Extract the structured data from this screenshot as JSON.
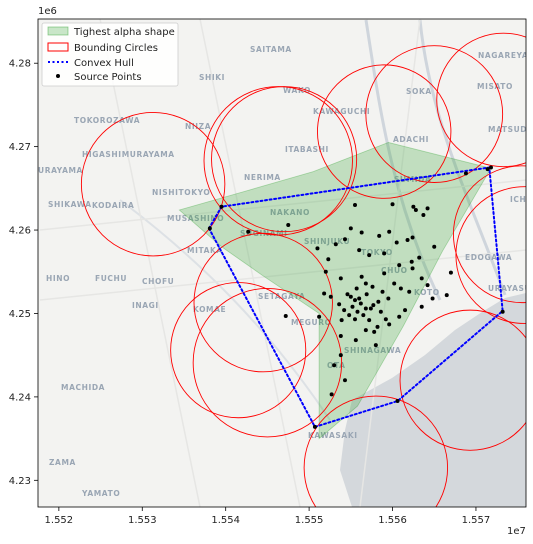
{
  "chart_data": {
    "type": "scatter",
    "title": "",
    "xlabel": "",
    "ylabel": "",
    "xlim": [
      15517500,
      15576000
    ],
    "ylim": [
      4226800,
      4285300
    ],
    "x_offset_label": "1e7",
    "y_offset_label": "1e6",
    "x_ticks": [
      15520000,
      15530000,
      15540000,
      15550000,
      15560000,
      15570000
    ],
    "x_tick_labels": [
      "1.552",
      "1.553",
      "1.554",
      "1.555",
      "1.556",
      "1.557"
    ],
    "y_ticks": [
      4230000,
      4240000,
      4250000,
      4260000,
      4270000,
      4280000
    ],
    "y_tick_labels": [
      "4.23",
      "4.24",
      "4.25",
      "4.26",
      "4.27",
      "4.28"
    ],
    "grid": false,
    "legend_position": "top-left",
    "legend": [
      {
        "label": "Tighest alpha shape",
        "kind": "patch",
        "color": "#2ca02c"
      },
      {
        "label": "Bounding Circles",
        "kind": "circle-outline",
        "color": "#ff0000"
      },
      {
        "label": "Convex Hull",
        "kind": "dotted-line",
        "color": "#0000ff"
      },
      {
        "label": "Source Points",
        "kind": "marker",
        "color": "#000000"
      }
    ],
    "colors": {
      "alpha_shape": "#2ca02c",
      "circles": "#ff0000",
      "hull": "#0000ff",
      "points": "#000000",
      "basemap_land": "#f3f3f1",
      "basemap_water": "#d4d8dc"
    },
    "alpha_shape": [
      [
        15534450,
        4262400
      ],
      [
        15542500,
        4264700
      ],
      [
        15550500,
        4267000
      ],
      [
        15559500,
        4270500
      ],
      [
        15571800,
        4267400
      ],
      [
        15566000,
        4257500
      ],
      [
        15561300,
        4248500
      ],
      [
        15555800,
        4238900
      ],
      [
        15551200,
        4235000
      ],
      [
        15551200,
        4250000
      ],
      [
        15544500,
        4254500
      ],
      [
        15539500,
        4258000
      ],
      [
        15534450,
        4262400
      ]
    ],
    "convex_hull": [
      [
        15538000,
        4260200
      ],
      [
        15539500,
        4262800
      ],
      [
        15571600,
        4267500
      ],
      [
        15573200,
        4250300
      ],
      [
        15560600,
        4239500
      ],
      [
        15550700,
        4236400
      ],
      [
        15538000,
        4260200
      ]
    ],
    "circles": [
      {
        "cx": 15531300,
        "cy": 4265500,
        "r": 8600
      },
      {
        "cx": 15547000,
        "cy": 4268500,
        "r": 8700
      },
      {
        "cx": 15546300,
        "cy": 4268300,
        "r": 8900
      },
      {
        "cx": 15559000,
        "cy": 4271800,
        "r": 8000
      },
      {
        "cx": 15565000,
        "cy": 4273900,
        "r": 8200
      },
      {
        "cx": 15573300,
        "cy": 4275600,
        "r": 8000
      },
      {
        "cx": 15575500,
        "cy": 4259500,
        "r": 8200
      },
      {
        "cx": 15575800,
        "cy": 4257000,
        "r": 8200
      },
      {
        "cx": 15544500,
        "cy": 4251300,
        "r": 8300
      },
      {
        "cx": 15541500,
        "cy": 4245600,
        "r": 8100
      },
      {
        "cx": 15545000,
        "cy": 4244100,
        "r": 8900
      },
      {
        "cx": 15558000,
        "cy": 4231500,
        "r": 8600
      },
      {
        "cx": 15569300,
        "cy": 4242000,
        "r": 8400
      }
    ],
    "points": [
      [
        15538100,
        4260200
      ],
      [
        15539500,
        4262800
      ],
      [
        15542700,
        4259800
      ],
      [
        15547500,
        4260600
      ],
      [
        15555500,
        4263000
      ],
      [
        15560000,
        4263100
      ],
      [
        15568800,
        4266800
      ],
      [
        15571400,
        4267300
      ],
      [
        15571800,
        4267500
      ],
      [
        15567000,
        4254900
      ],
      [
        15573200,
        4250200
      ],
      [
        15560600,
        4239500
      ],
      [
        15550700,
        4236400
      ],
      [
        15551200,
        4249600
      ],
      [
        15547200,
        4249700
      ],
      [
        15562500,
        4262800
      ],
      [
        15562800,
        4262400
      ],
      [
        15564200,
        4262600
      ],
      [
        15563700,
        4261800
      ],
      [
        15555000,
        4260200
      ],
      [
        15556300,
        4259700
      ],
      [
        15558400,
        4259300
      ],
      [
        15559600,
        4259800
      ],
      [
        15560500,
        4258500
      ],
      [
        15561800,
        4258800
      ],
      [
        15562400,
        4259100
      ],
      [
        15565000,
        4258000
      ],
      [
        15559000,
        4257200
      ],
      [
        15557200,
        4257000
      ],
      [
        15556000,
        4257600
      ],
      [
        15552300,
        4256500
      ],
      [
        15551000,
        4257800
      ],
      [
        15553200,
        4258300
      ],
      [
        15554300,
        4258900
      ],
      [
        15552000,
        4255000
      ],
      [
        15553800,
        4254200
      ],
      [
        15556300,
        4254400
      ],
      [
        15559000,
        4254800
      ],
      [
        15560800,
        4255800
      ],
      [
        15562300,
        4256200
      ],
      [
        15563200,
        4256700
      ],
      [
        15562400,
        4255400
      ],
      [
        15560200,
        4253600
      ],
      [
        15561000,
        4253000
      ],
      [
        15562000,
        4252600
      ],
      [
        15558800,
        4252600
      ],
      [
        15559500,
        4251800
      ],
      [
        15557700,
        4251000
      ],
      [
        15555800,
        4250200
      ],
      [
        15554800,
        4249800
      ],
      [
        15555500,
        4249300
      ],
      [
        15556500,
        4249800
      ],
      [
        15557200,
        4249200
      ],
      [
        15556800,
        4248000
      ],
      [
        15558200,
        4248400
      ],
      [
        15559600,
        4248700
      ],
      [
        15560800,
        4249600
      ],
      [
        15561500,
        4250400
      ],
      [
        15563500,
        4250800
      ],
      [
        15564800,
        4251800
      ],
      [
        15564200,
        4253400
      ],
      [
        15563500,
        4254200
      ],
      [
        15566500,
        4252200
      ],
      [
        15553800,
        4247300
      ],
      [
        15555600,
        4246800
      ],
      [
        15558000,
        4246200
      ],
      [
        15553800,
        4245000
      ],
      [
        15553000,
        4243800
      ],
      [
        15554300,
        4242000
      ],
      [
        15552700,
        4240300
      ],
      [
        15555500,
        4251600
      ],
      [
        15554600,
        4252300
      ],
      [
        15553600,
        4251100
      ],
      [
        15552600,
        4252000
      ],
      [
        15551800,
        4252400
      ],
      [
        15556900,
        4252300
      ],
      [
        15557600,
        4253200
      ],
      [
        15558600,
        4250200
      ],
      [
        15559200,
        4249300
      ],
      [
        15556200,
        4251200
      ],
      [
        15555200,
        4250800
      ],
      [
        15553900,
        4249200
      ],
      [
        15557800,
        4247800
      ],
      [
        15555000,
        4252000
      ],
      [
        15556000,
        4251800
      ],
      [
        15557400,
        4250600
      ],
      [
        15554200,
        4250400
      ],
      [
        15556800,
        4250600
      ],
      [
        15558300,
        4251400
      ],
      [
        15555700,
        4253000
      ],
      [
        15556800,
        4253600
      ]
    ]
  }
}
